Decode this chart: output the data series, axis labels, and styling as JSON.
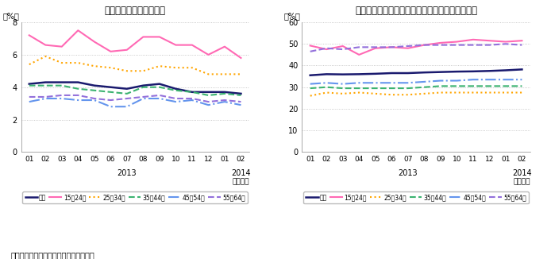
{
  "title1": "図１　完全失業率の推移",
  "title2": "図２　雇用者に占める非正規雇用者の割合の推移",
  "xlabel_year1": "2013",
  "xlabel_year2": "2014",
  "xlabel_unit": "（年月）",
  "ylabel_unit": "（%）",
  "source": "（資料）いずれも総務省「労働力調査」",
  "x_labels": [
    "01",
    "02",
    "03",
    "04",
    "05",
    "06",
    "07",
    "08",
    "09",
    "10",
    "11",
    "12",
    "01",
    "02"
  ],
  "fig1_ylim": [
    0,
    8
  ],
  "fig1_yticks": [
    0,
    2,
    4,
    6,
    8
  ],
  "fig2_ylim": [
    0,
    60
  ],
  "fig2_yticks": [
    0,
    10,
    20,
    30,
    40,
    50,
    60
  ],
  "legend_labels": [
    "総数",
    "15〜24歳",
    "25〜34歳",
    "35〜44歳",
    "45〜54歳",
    "55〜64歳"
  ],
  "colors": [
    "#1a1a6e",
    "#ff69b4",
    "#ffa500",
    "#3cb371",
    "#6495ed",
    "#9370db"
  ],
  "fig1_data": {
    "総数": [
      4.2,
      4.3,
      4.3,
      4.3,
      4.1,
      4.0,
      3.9,
      4.1,
      4.2,
      3.9,
      3.7,
      3.7,
      3.7,
      3.6
    ],
    "15〜24歳": [
      7.2,
      6.6,
      6.5,
      7.5,
      6.8,
      6.2,
      6.3,
      7.1,
      7.1,
      6.6,
      6.6,
      6.0,
      6.5,
      5.8
    ],
    "25〜34歳": [
      5.4,
      5.9,
      5.5,
      5.5,
      5.3,
      5.2,
      5.0,
      5.0,
      5.3,
      5.2,
      5.2,
      4.8,
      4.8,
      4.8
    ],
    "35〜44歳": [
      4.1,
      4.1,
      4.1,
      3.9,
      3.8,
      3.7,
      3.6,
      4.0,
      4.0,
      3.8,
      3.7,
      3.5,
      3.6,
      3.5
    ],
    "45〜54歳": [
      3.1,
      3.3,
      3.3,
      3.2,
      3.2,
      2.8,
      2.8,
      3.3,
      3.3,
      3.1,
      3.2,
      2.9,
      3.1,
      2.9
    ],
    "55〜64歳": [
      3.4,
      3.4,
      3.5,
      3.5,
      3.3,
      3.2,
      3.3,
      3.4,
      3.5,
      3.3,
      3.3,
      3.1,
      3.2,
      3.1
    ]
  },
  "fig2_data": {
    "総数": [
      35.5,
      36.0,
      35.9,
      36.0,
      36.2,
      36.5,
      36.5,
      36.8,
      37.0,
      37.2,
      37.3,
      37.5,
      37.8,
      38.2
    ],
    "15〜24歳": [
      49.2,
      47.5,
      49.0,
      45.0,
      48.0,
      48.5,
      48.0,
      49.5,
      50.5,
      51.0,
      52.0,
      51.5,
      51.0,
      51.5
    ],
    "25〜34歳": [
      26.0,
      27.5,
      27.0,
      27.5,
      27.0,
      26.5,
      26.5,
      27.0,
      27.5,
      27.5,
      27.5,
      27.5,
      27.5,
      27.5
    ],
    "35〜44歳": [
      29.5,
      30.0,
      29.5,
      29.5,
      29.5,
      29.5,
      29.5,
      30.0,
      30.5,
      30.5,
      30.5,
      30.5,
      30.5,
      30.5
    ],
    "45〜54歳": [
      31.5,
      32.0,
      31.5,
      32.0,
      32.0,
      32.0,
      32.0,
      32.5,
      33.0,
      33.0,
      33.5,
      33.5,
      33.5,
      33.5
    ],
    "55〜64歳": [
      46.5,
      48.0,
      47.5,
      48.5,
      48.5,
      48.5,
      49.0,
      49.5,
      49.5,
      49.5,
      49.5,
      49.5,
      50.0,
      49.5
    ]
  },
  "line_styles": {
    "総数": {
      "ls": "-",
      "lw": 1.8,
      "marker": "None"
    },
    "15〜24歳": {
      "ls": "-",
      "lw": 1.5,
      "marker": "None"
    },
    "25〜34歳": {
      "ls": ":",
      "lw": 1.5,
      "marker": "None"
    },
    "35〜44歳": {
      "ls": "--",
      "lw": 1.5,
      "marker": "None"
    },
    "45〜54歳": {
      "ls": "-.",
      "lw": 1.5,
      "marker": "None"
    },
    "55〜64歳": {
      "ls": "--",
      "lw": 1.5,
      "marker": "None"
    }
  }
}
